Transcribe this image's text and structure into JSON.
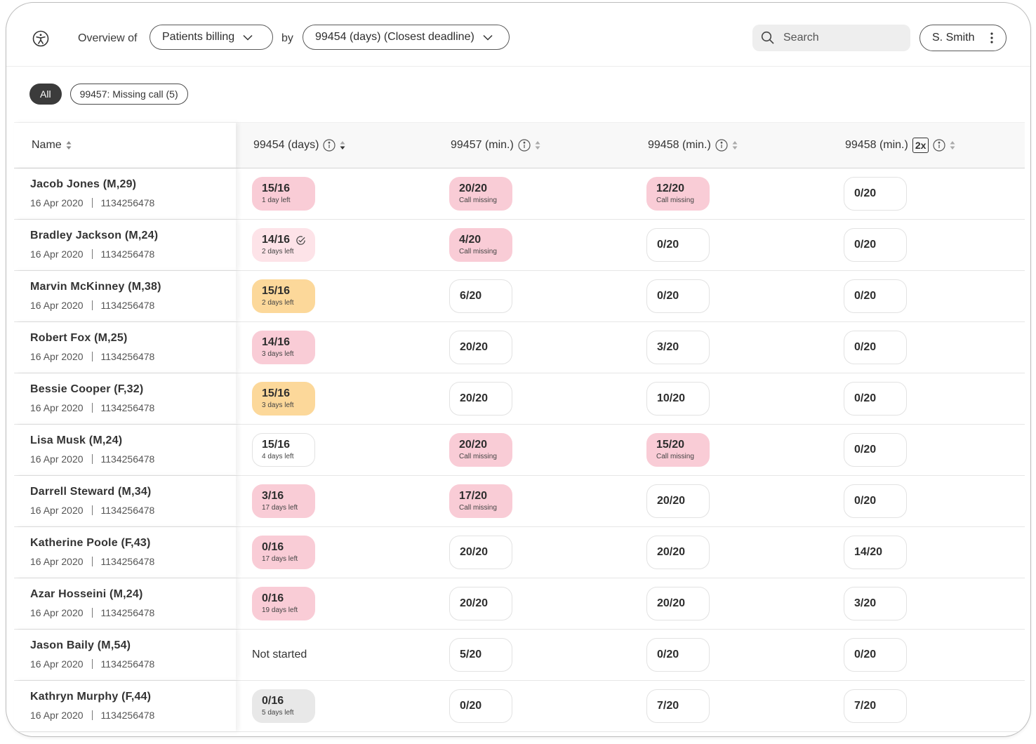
{
  "header": {
    "overview_label": "Overview of",
    "view_select": "Patients billing",
    "by_label": "by",
    "sort_select": "99454 (days) (Closest deadline)",
    "search_placeholder": "Search",
    "user_name": "S. Smith"
  },
  "filters": [
    {
      "label": "All",
      "active": true
    },
    {
      "label": "99457: Missing call (5)",
      "active": false
    }
  ],
  "columns": {
    "name": "Name",
    "c1": "99454 (days)",
    "c2": "99457 (min.)",
    "c3": "99458 (min.)",
    "c4": "99458 (min.)",
    "c4_tag": "2x"
  },
  "colors": {
    "pink": "#f9ccd6",
    "light_pink": "#fde3e8",
    "orange": "#fcd89a",
    "grey": "#e8e8e8",
    "dark": "#3b3b3b"
  },
  "rows": [
    {
      "name": "Jacob Jones (M,29)",
      "date": "16 Apr 2020",
      "id": "1134256478",
      "c1": {
        "v": "15/16",
        "s": "1 day left",
        "style": "pink"
      },
      "c2": {
        "v": "20/20",
        "s": "Call missing",
        "style": "pink"
      },
      "c3": {
        "v": "12/20",
        "s": "Call missing",
        "style": "pink"
      },
      "c4": {
        "v": "0/20",
        "style": "plain"
      }
    },
    {
      "name": "Bradley Jackson (M,24)",
      "date": "16 Apr 2020",
      "id": "1134256478",
      "c1": {
        "v": "14/16",
        "s": "2 days left",
        "style": "lightpink",
        "check": true
      },
      "c2": {
        "v": "4/20",
        "s": "Call missing",
        "style": "pink"
      },
      "c3": {
        "v": "0/20",
        "style": "plain"
      },
      "c4": {
        "v": "0/20",
        "style": "plain"
      }
    },
    {
      "name": "Marvin McKinney (M,38)",
      "date": "16 Apr 2020",
      "id": "1134256478",
      "c1": {
        "v": "15/16",
        "s": "2 days left",
        "style": "orange"
      },
      "c2": {
        "v": "6/20",
        "style": "plain"
      },
      "c3": {
        "v": "0/20",
        "style": "plain"
      },
      "c4": {
        "v": "0/20",
        "style": "plain"
      }
    },
    {
      "name": "Robert Fox (M,25)",
      "date": "16 Apr 2020",
      "id": "1134256478",
      "c1": {
        "v": "14/16",
        "s": "3 days left",
        "style": "pink"
      },
      "c2": {
        "v": "20/20",
        "style": "plain"
      },
      "c3": {
        "v": "3/20",
        "style": "plain"
      },
      "c4": {
        "v": "0/20",
        "style": "plain"
      }
    },
    {
      "name": "Bessie Cooper (F,32)",
      "date": "16 Apr 2020",
      "id": "1134256478",
      "c1": {
        "v": "15/16",
        "s": "3 days left",
        "style": "orange"
      },
      "c2": {
        "v": "20/20",
        "style": "plain"
      },
      "c3": {
        "v": "10/20",
        "style": "plain"
      },
      "c4": {
        "v": "0/20",
        "style": "plain"
      }
    },
    {
      "name": "Lisa Musk (M,24)",
      "date": "16 Apr 2020",
      "id": "1134256478",
      "c1": {
        "v": "15/16",
        "s": "4 days left",
        "style": "plain"
      },
      "c2": {
        "v": "20/20",
        "s": "Call missing",
        "style": "pink"
      },
      "c3": {
        "v": "15/20",
        "s": "Call missing",
        "style": "pink"
      },
      "c4": {
        "v": "0/20",
        "style": "plain"
      }
    },
    {
      "name": "Darrell Steward (M,34)",
      "date": "16 Apr 2020",
      "id": "1134256478",
      "c1": {
        "v": "3/16",
        "s": "17 days left",
        "style": "pink"
      },
      "c2": {
        "v": "17/20",
        "s": "Call missing",
        "style": "pink"
      },
      "c3": {
        "v": "20/20",
        "style": "plain"
      },
      "c4": {
        "v": "0/20",
        "style": "plain"
      }
    },
    {
      "name": "Katherine Poole (F,43)",
      "date": "16 Apr 2020",
      "id": "1134256478",
      "c1": {
        "v": "0/16",
        "s": "17 days left",
        "style": "pink"
      },
      "c2": {
        "v": "20/20",
        "style": "plain"
      },
      "c3": {
        "v": "20/20",
        "style": "plain"
      },
      "c4": {
        "v": "14/20",
        "style": "plain"
      }
    },
    {
      "name": "Azar Hosseini (M,24)",
      "date": "16 Apr 2020",
      "id": "1134256478",
      "c1": {
        "v": "0/16",
        "s": "19 days left",
        "style": "pink"
      },
      "c2": {
        "v": "20/20",
        "style": "plain"
      },
      "c3": {
        "v": "20/20",
        "style": "plain"
      },
      "c4": {
        "v": "3/20",
        "style": "plain"
      }
    },
    {
      "name": "Jason Baily (M,54)",
      "date": "16 Apr 2020",
      "id": "1134256478",
      "c1": {
        "text": "Not started",
        "style": "text"
      },
      "c2": {
        "v": "5/20",
        "style": "plain"
      },
      "c3": {
        "v": "0/20",
        "style": "plain"
      },
      "c4": {
        "v": "0/20",
        "style": "plain"
      }
    },
    {
      "name": "Kathryn Murphy (F,44)",
      "date": "16 Apr 2020",
      "id": "1134256478",
      "c1": {
        "v": "0/16",
        "s": "5 days left",
        "style": "grey"
      },
      "c2": {
        "v": "0/20",
        "style": "plain"
      },
      "c3": {
        "v": "7/20",
        "style": "plain"
      },
      "c4": {
        "v": "7/20",
        "style": "plain"
      }
    }
  ]
}
